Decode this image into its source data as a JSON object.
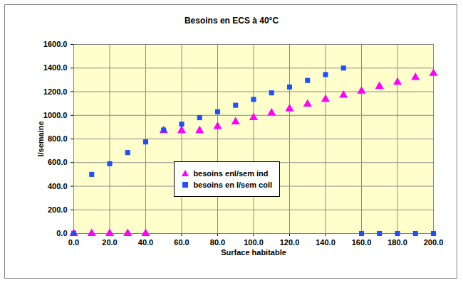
{
  "chart_data": {
    "type": "scatter",
    "title": "Besoins en ECS à 40°C",
    "x_label": "Surface habitable",
    "y_label": "l/semaine",
    "x": [
      0,
      10,
      20,
      30,
      40,
      50,
      60,
      70,
      80,
      90,
      100,
      110,
      120,
      130,
      140,
      150,
      160,
      170,
      180,
      190,
      200
    ],
    "series": [
      {
        "name": "besoins enl/sem ind",
        "color": "#FF00FF",
        "marker": "triangle",
        "values": [
          0,
          0,
          0,
          0,
          0,
          870,
          870,
          870,
          905,
          945,
          980,
          1020,
          1055,
          1095,
          1135,
          1170,
          1205,
          1245,
          1280,
          1320,
          1355
        ]
      },
      {
        "name": "besoins en l/sem coll",
        "color": "#1F4FFF",
        "marker": "square",
        "values": [
          0,
          500,
          590,
          685,
          775,
          875,
          925,
          980,
          1030,
          1085,
          1135,
          1190,
          1240,
          1295,
          1345,
          1400,
          0,
          0,
          0,
          0,
          0
        ]
      }
    ],
    "xlim": [
      0,
      200
    ],
    "xticks": [
      {
        "value": 0,
        "label": "0.0"
      },
      {
        "value": 20,
        "label": "20.0"
      },
      {
        "value": 40,
        "label": "40.0"
      },
      {
        "value": 60,
        "label": "60.0"
      },
      {
        "value": 80,
        "label": "80.0"
      },
      {
        "value": 100,
        "label": "100.0"
      },
      {
        "value": 120,
        "label": "120.0"
      },
      {
        "value": 140,
        "label": "140.0"
      },
      {
        "value": 160,
        "label": "160.0"
      },
      {
        "value": 180,
        "label": "180.0"
      },
      {
        "value": 200,
        "label": "200.0"
      }
    ],
    "ylim": [
      0,
      1600
    ],
    "yticks": [
      {
        "value": 0,
        "label": "0.0"
      },
      {
        "value": 200,
        "label": "200.0"
      },
      {
        "value": 400,
        "label": "400.0"
      },
      {
        "value": 600,
        "label": "600.0"
      },
      {
        "value": 800,
        "label": "800.0"
      },
      {
        "value": 1000,
        "label": "1000.0"
      },
      {
        "value": 1200,
        "label": "1200.0"
      },
      {
        "value": 1400,
        "label": "1400.0"
      },
      {
        "value": 1600,
        "label": "1600.0"
      }
    ],
    "grid": true,
    "legend": "center"
  }
}
